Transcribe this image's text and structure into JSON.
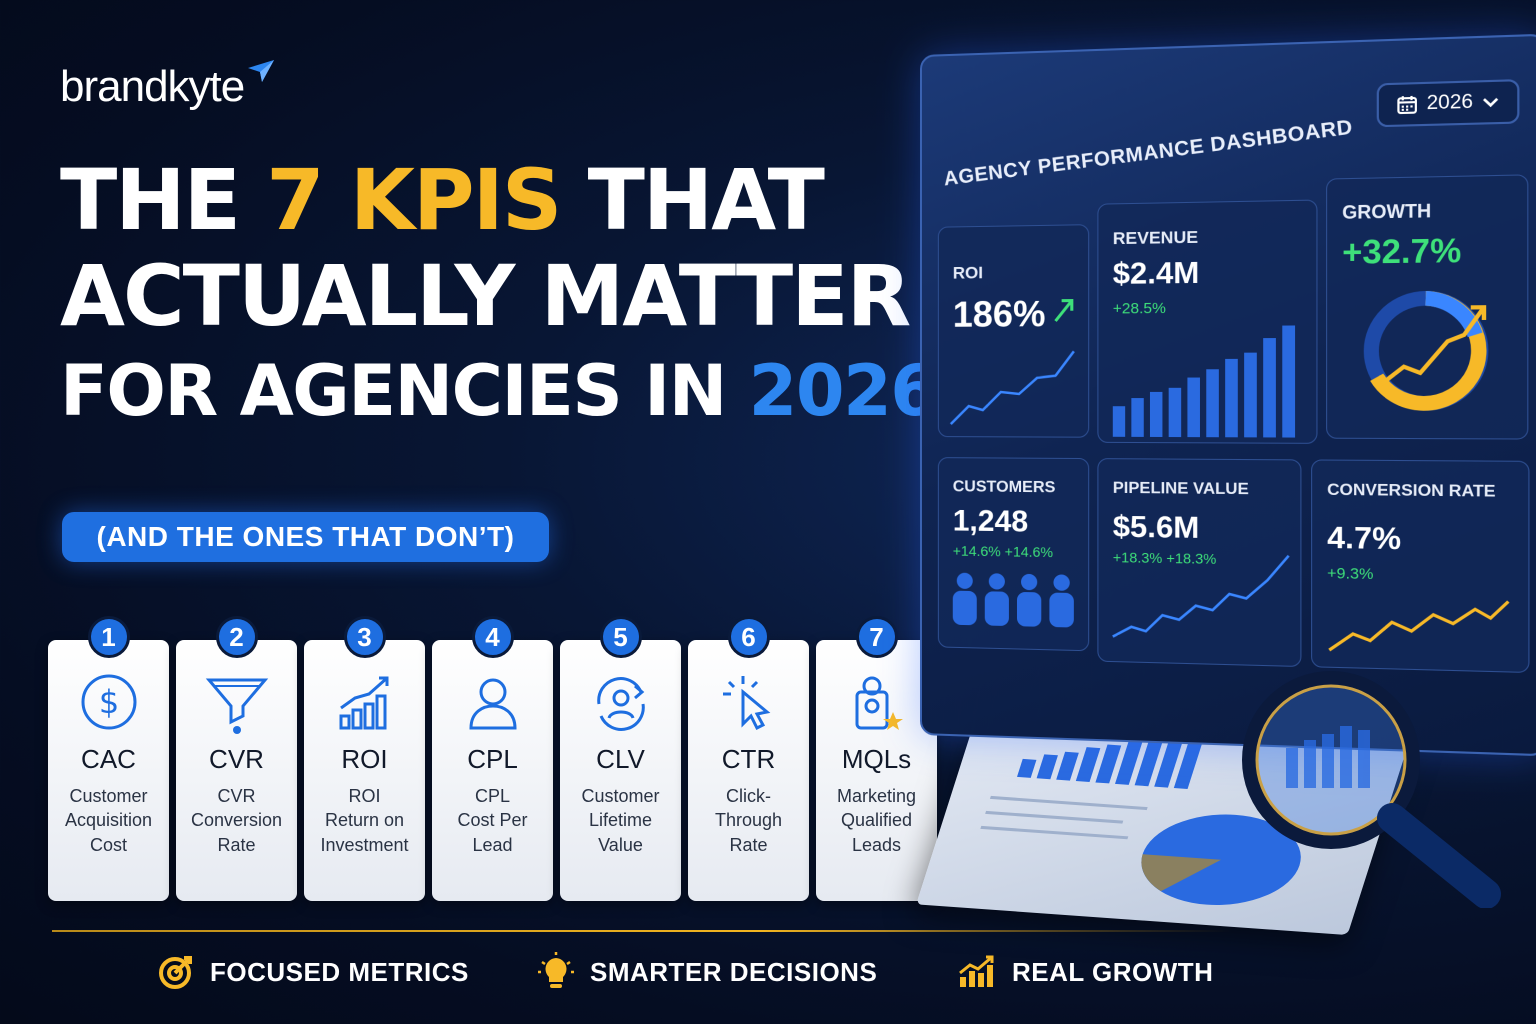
{
  "brand": {
    "name": "brandkyte"
  },
  "headline": {
    "line1_pre": "THE ",
    "line1_highlight": "7 KPIs",
    "line1_post": " THAT",
    "line2": "ACTUALLY MATTER",
    "line3_pre": "FOR AGENCIES IN ",
    "line3_highlight": "2026"
  },
  "subtitle": "(AND THE ONES THAT DON’T)",
  "kpis": [
    {
      "num": "1",
      "abbr": "CAC",
      "desc": [
        "Customer",
        "Acquisition",
        "Cost"
      ],
      "icon": "dollar-icon"
    },
    {
      "num": "2",
      "abbr": "CVR",
      "desc": [
        "CVR",
        "Conversion",
        "Rate"
      ],
      "icon": "funnel-icon"
    },
    {
      "num": "3",
      "abbr": "ROI",
      "desc": [
        "ROI",
        "Return on",
        "Investment"
      ],
      "icon": "growth-bars-icon"
    },
    {
      "num": "4",
      "abbr": "CPL",
      "desc": [
        "CPL",
        "Cost Per",
        "Lead"
      ],
      "icon": "user-icon"
    },
    {
      "num": "5",
      "abbr": "CLV",
      "desc": [
        "Customer",
        "Lifetime",
        "Value"
      ],
      "icon": "user-cycle-icon"
    },
    {
      "num": "6",
      "abbr": "CTR",
      "desc": [
        "Click-Through",
        "Rate"
      ],
      "icon": "cursor-click-icon"
    },
    {
      "num": "7",
      "abbr": "MQLs",
      "desc": [
        "Marketing",
        "Qualified",
        "Leads"
      ],
      "icon": "badge-star-icon"
    }
  ],
  "benefits": [
    {
      "label": "FOCUSED METRICS",
      "icon": "target-icon"
    },
    {
      "label": "SMARTER DECISIONS",
      "icon": "lightbulb-icon"
    },
    {
      "label": "REAL GROWTH",
      "icon": "bar-chart-icon"
    }
  ],
  "dashboard": {
    "title": "AGENCY PERFORMANCE DASHBOARD",
    "year": "2026",
    "panels": {
      "roi": {
        "label": "ROI",
        "value": "186%"
      },
      "revenue": {
        "label": "REVENUE",
        "value": "$2.4M",
        "delta": "+28.5%"
      },
      "growth": {
        "label": "GROWTH",
        "value": "+32.7%"
      },
      "customers": {
        "label": "CUSTOMERS",
        "value": "1,248",
        "delta": "+14.6%  +14.6%"
      },
      "pipeline": {
        "label": "PIPELINE VALUE",
        "value": "$5.6M",
        "delta": "+18.3%  +18.3%"
      },
      "conversion": {
        "label": "CONVERSION RATE",
        "value": "4.7%",
        "delta": "+9.3%"
      }
    }
  },
  "colors": {
    "accent_yellow": "#f7b928",
    "accent_blue": "#2d86f0",
    "delta_green": "#3ee07a"
  }
}
